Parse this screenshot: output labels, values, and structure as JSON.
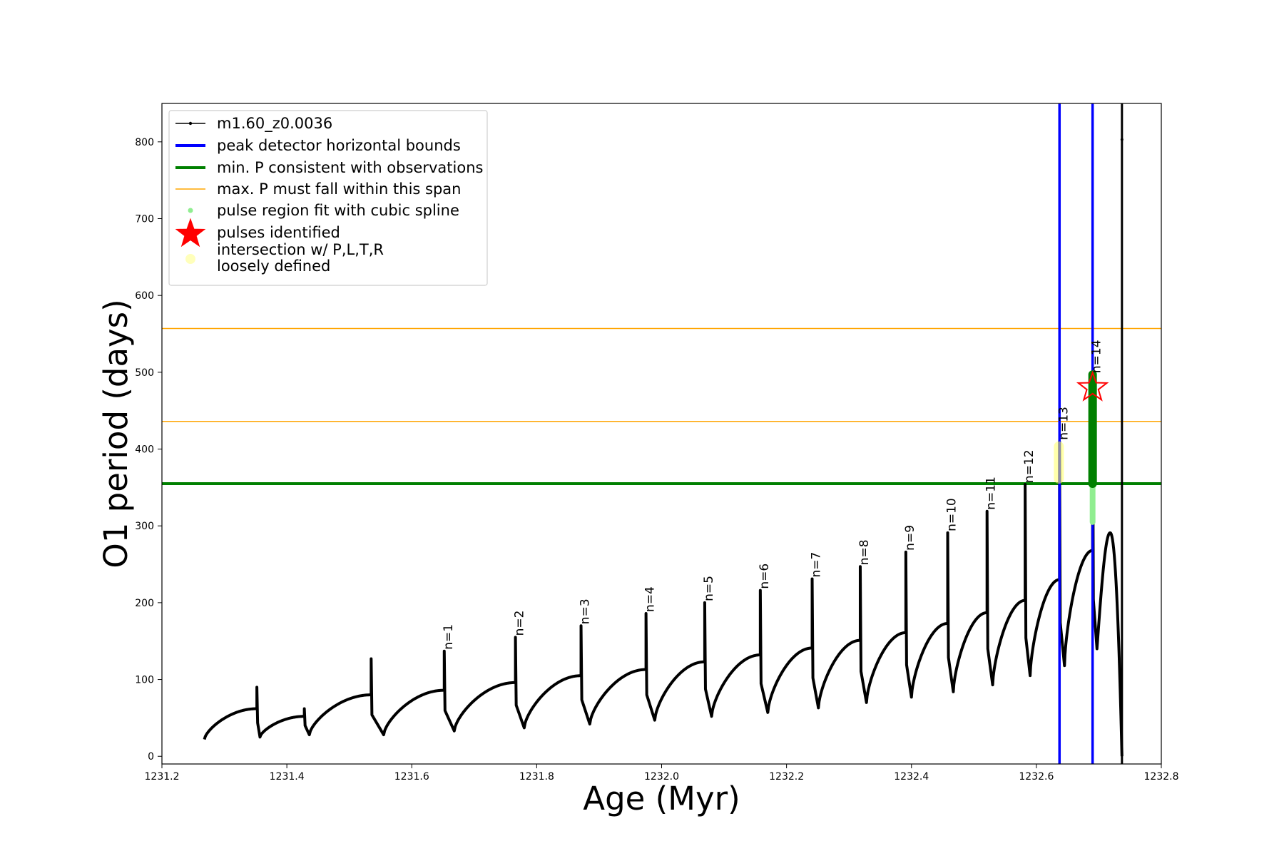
{
  "chart_data": {
    "type": "line",
    "xlabel": "Age (Myr)",
    "ylabel": "O1 period (days)",
    "xlim": [
      1231.2,
      1232.8
    ],
    "ylim": [
      -10,
      850
    ],
    "xticks": [
      1231.2,
      1231.4,
      1231.6,
      1231.8,
      1232.0,
      1232.2,
      1232.4,
      1232.6,
      1232.8
    ],
    "xtick_labels": [
      "1231.2",
      "1231.4",
      "1231.6",
      "1231.8",
      "1232.0",
      "1232.2",
      "1232.4",
      "1232.6",
      "1232.8"
    ],
    "yticks": [
      0,
      100,
      200,
      300,
      400,
      500,
      600,
      700,
      800
    ],
    "ytick_labels": [
      "0",
      "100",
      "200",
      "300",
      "400",
      "500",
      "600",
      "700",
      "800"
    ],
    "grid": false,
    "legend_position": "top-left",
    "legend": [
      {
        "label": "m1.60_z0.0036",
        "kind": "line-marker",
        "color": "#000000"
      },
      {
        "label": "peak detector horizontal bounds",
        "kind": "line",
        "color": "#0000ff"
      },
      {
        "label": "min. P consistent with observations",
        "kind": "line",
        "color": "#008000"
      },
      {
        "label": "max. P must fall within this span",
        "kind": "line",
        "color": "#ffa500"
      },
      {
        "label": "pulse region fit with cubic spline",
        "kind": "dot",
        "color": "#90ee90"
      },
      {
        "label": "pulses identified",
        "kind": "star",
        "color": "#ff0000"
      },
      {
        "label": "intersection w/ P,L,T,R",
        "label2": "loosely defined",
        "kind": "dot",
        "color": "#ffffaa"
      }
    ],
    "series_name": "m1.60_z0.0036",
    "cycles": [
      {
        "x0": 1231.268,
        "x1": 1231.352,
        "start": 22,
        "peak": 90,
        "min_t": 1231.357,
        "min_v": 25,
        "end": 62
      },
      {
        "x0": 1231.357,
        "x1": 1231.428,
        "start": 25,
        "peak": 62,
        "min_t": 1231.436,
        "min_v": 28,
        "end": 52
      },
      {
        "x0": 1231.436,
        "x1": 1231.535,
        "start": 28,
        "peak": 127,
        "min_t": 1231.555,
        "min_v": 28,
        "end": 80
      },
      {
        "x0": 1231.555,
        "x1": 1231.652,
        "start": 28,
        "peak": 137,
        "min_t": 1231.668,
        "min_v": 33,
        "end": 86
      },
      {
        "x0": 1231.668,
        "x1": 1231.766,
        "start": 33,
        "peak": 155,
        "min_t": 1231.78,
        "min_v": 37,
        "end": 96
      },
      {
        "x0": 1231.78,
        "x1": 1231.871,
        "start": 37,
        "peak": 170,
        "min_t": 1231.885,
        "min_v": 42,
        "end": 105
      },
      {
        "x0": 1231.885,
        "x1": 1231.975,
        "start": 42,
        "peak": 186,
        "min_t": 1231.989,
        "min_v": 47,
        "end": 113
      },
      {
        "x0": 1231.989,
        "x1": 1232.069,
        "start": 47,
        "peak": 200,
        "min_t": 1232.08,
        "min_v": 52,
        "end": 123
      },
      {
        "x0": 1232.08,
        "x1": 1232.158,
        "start": 52,
        "peak": 216,
        "min_t": 1232.17,
        "min_v": 57,
        "end": 132
      },
      {
        "x0": 1232.17,
        "x1": 1232.241,
        "start": 57,
        "peak": 231,
        "min_t": 1232.251,
        "min_v": 63,
        "end": 141
      },
      {
        "x0": 1232.251,
        "x1": 1232.318,
        "start": 63,
        "peak": 247,
        "min_t": 1232.328,
        "min_v": 70,
        "end": 151
      },
      {
        "x0": 1232.328,
        "x1": 1232.391,
        "start": 70,
        "peak": 266,
        "min_t": 1232.4,
        "min_v": 77,
        "end": 161
      },
      {
        "x0": 1232.4,
        "x1": 1232.458,
        "start": 77,
        "peak": 291,
        "min_t": 1232.467,
        "min_v": 84,
        "end": 173
      },
      {
        "x0": 1232.467,
        "x1": 1232.521,
        "start": 84,
        "peak": 319,
        "min_t": 1232.53,
        "min_v": 93,
        "end": 187
      },
      {
        "x0": 1232.53,
        "x1": 1232.582,
        "start": 93,
        "peak": 354,
        "min_t": 1232.59,
        "min_v": 105,
        "end": 203
      },
      {
        "x0": 1232.59,
        "x1": 1232.637,
        "start": 105,
        "peak": 410,
        "min_t": 1232.645,
        "min_v": 118,
        "end": 230
      },
      {
        "x0": 1232.645,
        "x1": 1232.69,
        "start": 118,
        "peak": 497,
        "min_t": 1232.697,
        "min_v": 140,
        "end": 268
      }
    ],
    "final_rise": {
      "x0": 1232.697,
      "x_peak": 1232.718,
      "peak": 291,
      "x_end": 1232.737,
      "end": 0
    },
    "stray_point": {
      "x": 1232.737,
      "y": 803
    },
    "pulse_labels": [
      {
        "text": "n=1",
        "x": 1231.652,
        "y": 137
      },
      {
        "text": "n=2",
        "x": 1231.766,
        "y": 155
      },
      {
        "text": "n=3",
        "x": 1231.871,
        "y": 170
      },
      {
        "text": "n=4",
        "x": 1231.975,
        "y": 186
      },
      {
        "text": "n=5",
        "x": 1232.069,
        "y": 200
      },
      {
        "text": "n=6",
        "x": 1232.158,
        "y": 216
      },
      {
        "text": "n=7",
        "x": 1232.241,
        "y": 231
      },
      {
        "text": "n=8",
        "x": 1232.318,
        "y": 247
      },
      {
        "text": "n=9",
        "x": 1232.391,
        "y": 266
      },
      {
        "text": "n=10",
        "x": 1232.458,
        "y": 291
      },
      {
        "text": "n=11",
        "x": 1232.521,
        "y": 319
      },
      {
        "text": "n=12",
        "x": 1232.582,
        "y": 354
      },
      {
        "text": "n=13",
        "x": 1232.637,
        "y": 410
      },
      {
        "text": "n=14",
        "x": 1232.69,
        "y": 497
      }
    ],
    "blue_vlines": [
      1232.637,
      1232.69
    ],
    "black_vline": 1232.737,
    "green_hline": 355,
    "orange_hlines": [
      436,
      557
    ],
    "yellow_region": {
      "x": 1232.636,
      "y_low": 355,
      "y_high": 410
    },
    "green_pulse_region": {
      "x": 1232.69,
      "y_low": 355,
      "y_high": 497,
      "light_low": 305
    },
    "star": {
      "x": 1232.69,
      "y": 480
    }
  }
}
